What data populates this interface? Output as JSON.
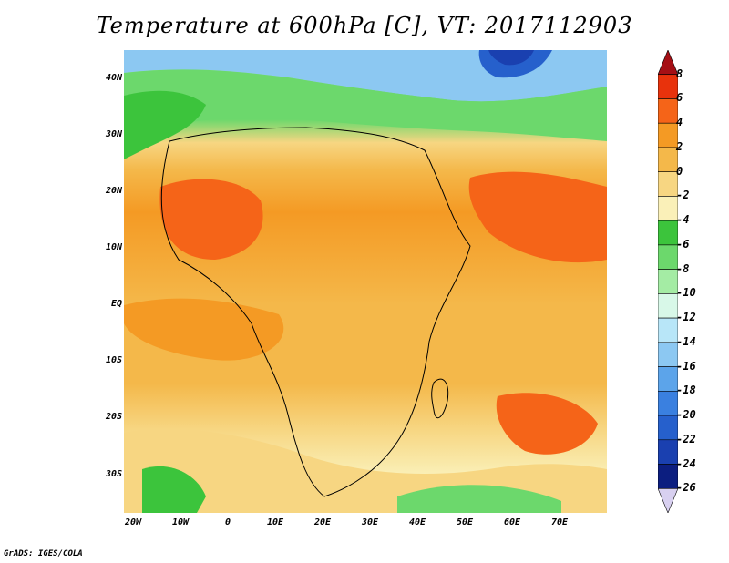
{
  "title": "Temperature at 600hPa [C], VT: 2017112903",
  "credit": "GrADS: IGES/COLA",
  "map": {
    "lon_range": [
      -20,
      80
    ],
    "lat_range": [
      -36,
      45
    ],
    "lat_labels": [
      "40N",
      "30N",
      "20N",
      "10N",
      "EQ",
      "10S",
      "20S",
      "30S"
    ],
    "lon_labels": [
      "20W",
      "10W",
      "0",
      "10E",
      "20E",
      "30E",
      "40E",
      "50E",
      "60E",
      "70E"
    ]
  },
  "colorbar": {
    "labels": [
      "8",
      "6",
      "4",
      "2",
      "0",
      "-2",
      "-4",
      "-6",
      "-8",
      "-10",
      "-12",
      "-14",
      "-16",
      "-18",
      "-20",
      "-22",
      "-24",
      "-26"
    ],
    "colors": [
      "#a50f15",
      "#e8320c",
      "#f56418",
      "#f49a24",
      "#f4b84a",
      "#f7d682",
      "#faf0b8",
      "#3cc43c",
      "#6cd86c",
      "#a4eca4",
      "#d8f8e8",
      "#b8e6f8",
      "#8cc8f2",
      "#5ca4ea",
      "#3a80e0",
      "#2660cc",
      "#1a40b0",
      "#0c1e80",
      "#d8d0f0"
    ]
  }
}
